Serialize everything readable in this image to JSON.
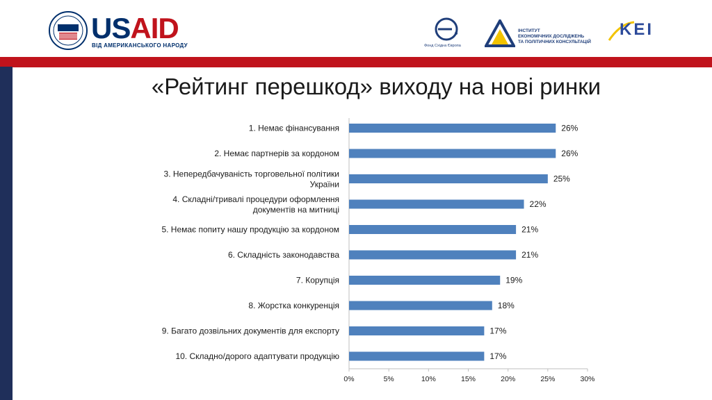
{
  "header": {
    "usaid_logo": "USAID",
    "usaid_tagline": "ВІД АМЕРИКАНСЬКОГО НАРОДУ",
    "efe_label": "Фонд Східна Європа",
    "ier_text": [
      "ІНСТИТУТ",
      "ЕКОНОМІЧНИХ ДОСЛІДЖЕНЬ",
      "ТА ПОЛІТИЧНИХ КОНСУЛЬТАЦІЙ"
    ],
    "kei_logo": "KEI"
  },
  "colors": {
    "accent_red": "#c0131c",
    "navy": "#1f2f5a",
    "bar": "#4f81bd"
  },
  "title": "«Рейтинг перешкод» виходу на нові ринки",
  "chart_data": {
    "type": "bar",
    "orientation": "horizontal",
    "categories": [
      "1. Немає фінансування",
      "2. Немає партнерів за кордоном",
      "3. Непередбачуваність торговельної політики України",
      "4. Складні/тривалі процедури оформлення документів на митниці",
      "5. Немає попиту нашу продукцію за кордоном",
      "6. Складність законодавства",
      "7. Корупція",
      "8. Жорстка конкуренція",
      "9. Багато дозвільних документів для експорту",
      "10. Складно/дорого адаптувати продукцію"
    ],
    "values": [
      26,
      26,
      25,
      22,
      21,
      21,
      19,
      18,
      17,
      17
    ],
    "value_labels": [
      "26%",
      "26%",
      "25%",
      "22%",
      "21%",
      "21%",
      "19%",
      "18%",
      "17%",
      "17%"
    ],
    "xlim": [
      0,
      30
    ],
    "xticks": [
      "0%",
      "5%",
      "10%",
      "15%",
      "20%",
      "25%",
      "30%"
    ],
    "grid": false
  }
}
